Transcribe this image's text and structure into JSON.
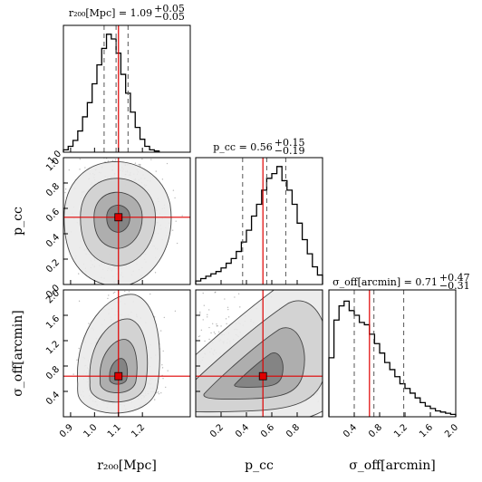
{
  "chart_data": {
    "type": "corner",
    "params": [
      {
        "key": "r200",
        "label": "r₂₀₀[Mpc]",
        "range": [
          0.87,
          1.4
        ],
        "ticks": [
          "0.9",
          "1.0",
          "1.1",
          "1.2"
        ],
        "tick_values": [
          0.9,
          1.0,
          1.1,
          1.2
        ],
        "truth": 1.1,
        "median": 1.09,
        "q16": 1.04,
        "q84": 1.14,
        "title": "r₂₀₀[Mpc] = 1.09",
        "title_up": "+0.05",
        "title_down": "−0.05"
      },
      {
        "key": "pcc",
        "label": "p_cc",
        "range": [
          0.0,
          1.0
        ],
        "ticks": [
          "0.2",
          "0.4",
          "0.6",
          "0.8"
        ],
        "tick_values": [
          0.2,
          0.4,
          0.6,
          0.8
        ],
        "ytick_labels": [
          "1.0",
          "0.8",
          "0.6",
          "0.4",
          "0.2",
          "0.0"
        ],
        "ytick_values": [
          1.0,
          0.8,
          0.6,
          0.4,
          0.2,
          0.0
        ],
        "truth": 0.53,
        "median": 0.56,
        "q16": 0.37,
        "q84": 0.71,
        "title": "p_cc = 0.56",
        "title_up": "+0.15",
        "title_down": "−0.19"
      },
      {
        "key": "soff",
        "label": "σ_off[arcmin]",
        "range": [
          0.0,
          2.0
        ],
        "ticks": [
          "0.4",
          "0.8",
          "1.2",
          "1.6",
          "2.0"
        ],
        "tick_values": [
          0.4,
          0.8,
          1.2,
          1.6,
          2.0
        ],
        "ytick_labels": [
          "2.0",
          "1.6",
          "1.2",
          "0.8",
          "0.4"
        ],
        "ytick_values": [
          2.0,
          1.6,
          1.2,
          0.8,
          0.4
        ],
        "truth": 0.64,
        "median": 0.71,
        "q16": 0.4,
        "q84": 1.18,
        "title": "σ_off[arcmin] = 0.71",
        "title_up": "+0.47",
        "title_down": "−0.31"
      }
    ],
    "hist_r200": {
      "bins_start": 0.87,
      "bin_width": 0.02,
      "counts": [
        0.02,
        0.05,
        0.1,
        0.18,
        0.3,
        0.42,
        0.58,
        0.74,
        0.88,
        1.0,
        0.96,
        0.84,
        0.66,
        0.5,
        0.34,
        0.21,
        0.11,
        0.05,
        0.02,
        0.01
      ]
    },
    "hist_pcc": {
      "bins_start": 0.0,
      "bin_width": 0.04,
      "counts": [
        0.03,
        0.05,
        0.07,
        0.09,
        0.11,
        0.14,
        0.18,
        0.22,
        0.28,
        0.36,
        0.46,
        0.58,
        0.68,
        0.8,
        0.9,
        0.94,
        1.0,
        0.88,
        0.8,
        0.68,
        0.52,
        0.38,
        0.26,
        0.15,
        0.08
      ]
    },
    "hist_soff": {
      "bins_start": 0.0,
      "bin_width": 0.08,
      "counts": [
        0.5,
        0.82,
        0.94,
        0.98,
        0.9,
        0.86,
        0.8,
        0.78,
        0.7,
        0.62,
        0.54,
        0.46,
        0.4,
        0.34,
        0.28,
        0.24,
        0.2,
        0.16,
        0.12,
        0.09,
        0.07,
        0.05,
        0.04,
        0.03,
        0.02
      ]
    }
  }
}
